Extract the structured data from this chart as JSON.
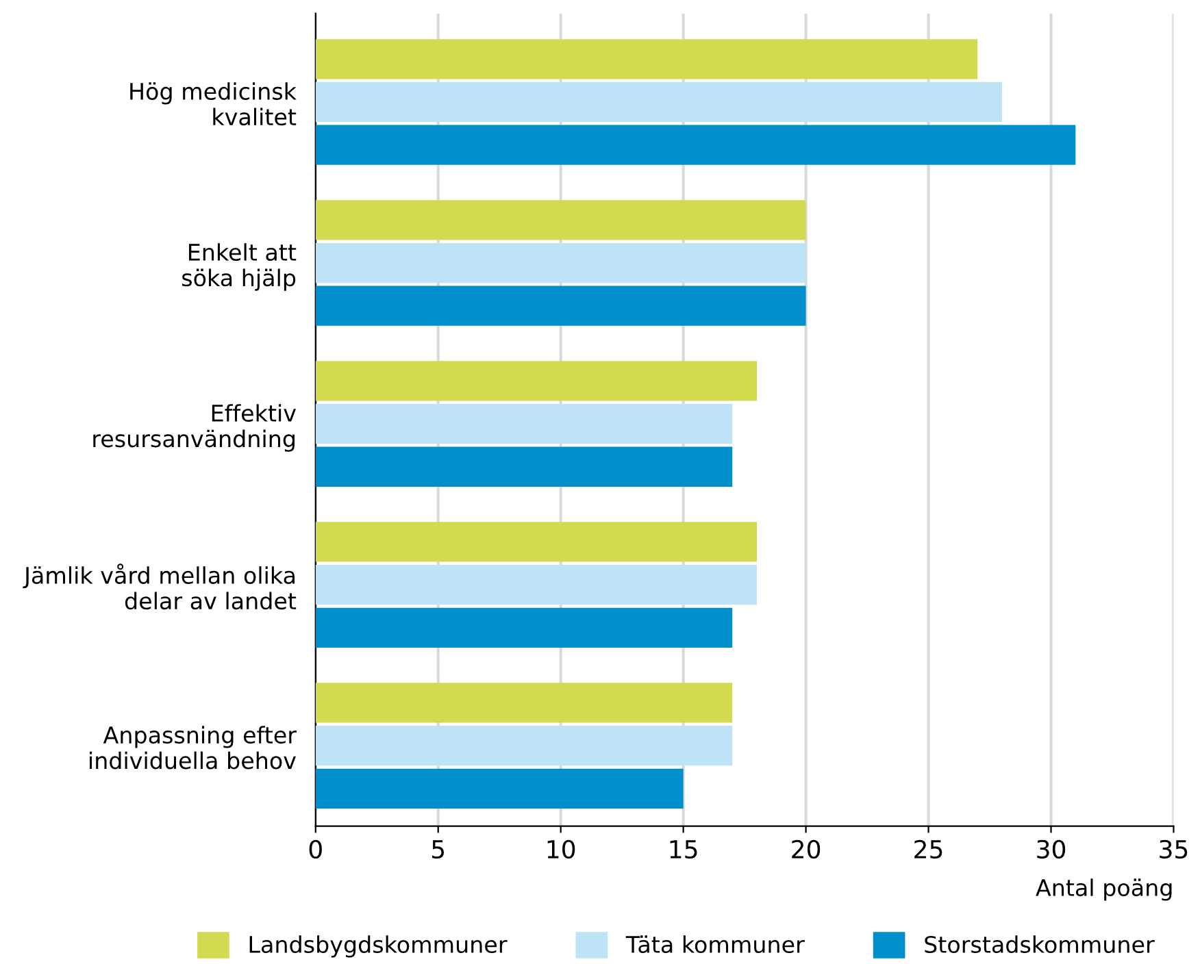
{
  "chart_data": {
    "type": "bar",
    "orientation": "horizontal",
    "xlabel": "Antal poäng",
    "categories": [
      "Hög medicinsk\nkvalitet",
      "Enkelt att\nsöka hjälp",
      "Effektiv\nresursanvändning",
      "Jämlik vård mellan olika\ndelar av landet",
      "Anpassning efter\nindividuella behov"
    ],
    "series": [
      {
        "name": "Landsbygdskommuner",
        "color": "#d4da4f",
        "values": [
          27,
          20,
          18,
          18,
          17
        ]
      },
      {
        "name": "Täta kommuner",
        "color": "#bee3f6",
        "values": [
          28,
          20,
          17,
          18,
          17
        ]
      },
      {
        "name": "Storstadskommuner",
        "color": "#008fcb",
        "values": [
          31,
          20,
          17,
          17,
          15
        ]
      }
    ],
    "xlim": [
      0,
      35
    ],
    "xticks": [
      0,
      5,
      10,
      15,
      20,
      25,
      30,
      35
    ],
    "grid": "x",
    "legend": "bottom"
  }
}
